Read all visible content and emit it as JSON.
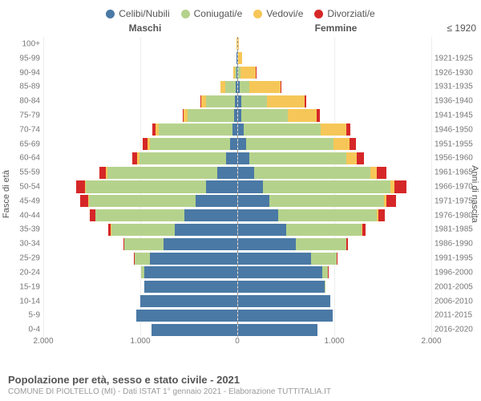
{
  "legend": [
    {
      "label": "Celibi/Nubili",
      "color": "#4a79a5"
    },
    {
      "label": "Coniugati/e",
      "color": "#b5d28c"
    },
    {
      "label": "Vedovi/e",
      "color": "#f6c758"
    },
    {
      "label": "Divorziati/e",
      "color": "#d62728"
    }
  ],
  "headers": {
    "male": "Maschi",
    "female": "Femmine",
    "year_top": "≤ 1920"
  },
  "axis_titles": {
    "left": "Fasce di età",
    "right": "Anni di nascita"
  },
  "x_max": 2000,
  "x_ticks": [
    2000,
    1000,
    0,
    1000,
    2000
  ],
  "x_tick_labels": [
    "2.000",
    "1.000",
    "0",
    "1.000",
    "2.000"
  ],
  "rows": [
    {
      "age": "100+",
      "year": "≤ 1920",
      "m": [
        0,
        0,
        1,
        0
      ],
      "f": [
        0,
        0,
        6,
        0
      ]
    },
    {
      "age": "95-99",
      "year": "1921-1925",
      "m": [
        1,
        0,
        4,
        0
      ],
      "f": [
        3,
        2,
        40,
        0
      ]
    },
    {
      "age": "90-94",
      "year": "1926-1930",
      "m": [
        5,
        14,
        20,
        0
      ],
      "f": [
        6,
        20,
        160,
        2
      ]
    },
    {
      "age": "85-89",
      "year": "1931-1935",
      "m": [
        14,
        110,
        48,
        2
      ],
      "f": [
        20,
        100,
        320,
        6
      ]
    },
    {
      "age": "80-84",
      "year": "1936-1940",
      "m": [
        22,
        300,
        50,
        6
      ],
      "f": [
        34,
        270,
        390,
        14
      ]
    },
    {
      "age": "75-79",
      "year": "1941-1945",
      "m": [
        28,
        480,
        40,
        12
      ],
      "f": [
        40,
        480,
        300,
        26
      ]
    },
    {
      "age": "70-74",
      "year": "1946-1950",
      "m": [
        48,
        760,
        36,
        32
      ],
      "f": [
        60,
        800,
        260,
        46
      ]
    },
    {
      "age": "65-69",
      "year": "1951-1955",
      "m": [
        70,
        830,
        24,
        46
      ],
      "f": [
        86,
        900,
        170,
        62
      ]
    },
    {
      "age": "60-64",
      "year": "1956-1960",
      "m": [
        110,
        900,
        18,
        56
      ],
      "f": [
        120,
        1000,
        110,
        76
      ]
    },
    {
      "age": "55-59",
      "year": "1961-1965",
      "m": [
        200,
        1140,
        12,
        72
      ],
      "f": [
        170,
        1200,
        70,
        100
      ]
    },
    {
      "age": "50-54",
      "year": "1966-1970",
      "m": [
        320,
        1240,
        10,
        92
      ],
      "f": [
        260,
        1320,
        40,
        120
      ]
    },
    {
      "age": "45-49",
      "year": "1971-1975",
      "m": [
        430,
        1100,
        6,
        82
      ],
      "f": [
        330,
        1180,
        24,
        104
      ]
    },
    {
      "age": "40-44",
      "year": "1976-1980",
      "m": [
        540,
        920,
        4,
        56
      ],
      "f": [
        420,
        1020,
        14,
        68
      ]
    },
    {
      "age": "35-39",
      "year": "1981-1985",
      "m": [
        640,
        660,
        2,
        28
      ],
      "f": [
        500,
        780,
        6,
        34
      ]
    },
    {
      "age": "30-34",
      "year": "1986-1990",
      "m": [
        760,
        400,
        0,
        12
      ],
      "f": [
        600,
        520,
        2,
        14
      ]
    },
    {
      "age": "25-29",
      "year": "1991-1995",
      "m": [
        900,
        160,
        0,
        4
      ],
      "f": [
        760,
        260,
        0,
        6
      ]
    },
    {
      "age": "20-24",
      "year": "1996-2000",
      "m": [
        960,
        30,
        0,
        0
      ],
      "f": [
        870,
        60,
        0,
        2
      ]
    },
    {
      "age": "15-19",
      "year": "2001-2005",
      "m": [
        960,
        0,
        0,
        0
      ],
      "f": [
        900,
        2,
        0,
        0
      ]
    },
    {
      "age": "10-14",
      "year": "2006-2010",
      "m": [
        1000,
        0,
        0,
        0
      ],
      "f": [
        960,
        0,
        0,
        0
      ]
    },
    {
      "age": "5-9",
      "year": "2011-2015",
      "m": [
        1040,
        0,
        0,
        0
      ],
      "f": [
        980,
        0,
        0,
        0
      ]
    },
    {
      "age": "0-4",
      "year": "2016-2020",
      "m": [
        880,
        0,
        0,
        0
      ],
      "f": [
        820,
        0,
        0,
        0
      ]
    }
  ],
  "footer": {
    "title": "Popolazione per età, sesso e stato civile - 2021",
    "subtitle": "COMUNE DI PIOLTELLO (MI) - Dati ISTAT 1° gennaio 2021 - Elaborazione TUTTITALIA.IT"
  }
}
